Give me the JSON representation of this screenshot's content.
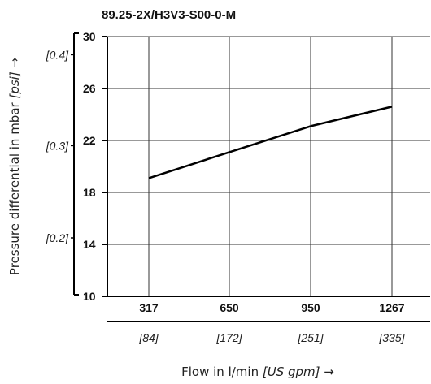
{
  "chart_data": {
    "type": "line",
    "title": "89.25-2X/H3V3-S00-0-M",
    "xlabel": "Flow in l/min",
    "xlabel_alt_unit": "[US gpm]",
    "xlabel_arrow": "→",
    "ylabel": "Pressure differential in mbar",
    "ylabel_alt_unit": "[psi]",
    "ylabel_arrow": "→",
    "x_ticks": [
      "317",
      "650",
      "950",
      "1267"
    ],
    "x_ticks_alt": [
      "[84]",
      "[172]",
      "[251]",
      "[335]"
    ],
    "y_ticks": [
      "10",
      "14",
      "18",
      "22",
      "26",
      "30"
    ],
    "y_ticks_alt": [
      "[0.2]",
      "[0.3]",
      "[0.4]"
    ],
    "y_ticks_alt_values": [
      14.5,
      21.6,
      28.6
    ],
    "ylim": [
      10,
      30
    ],
    "grid": true,
    "series": [
      {
        "x": [
          317,
          650,
          950,
          1267
        ],
        "y": [
          19.1,
          21.1,
          23.1,
          24.6
        ]
      }
    ],
    "line_color": "#000000"
  }
}
